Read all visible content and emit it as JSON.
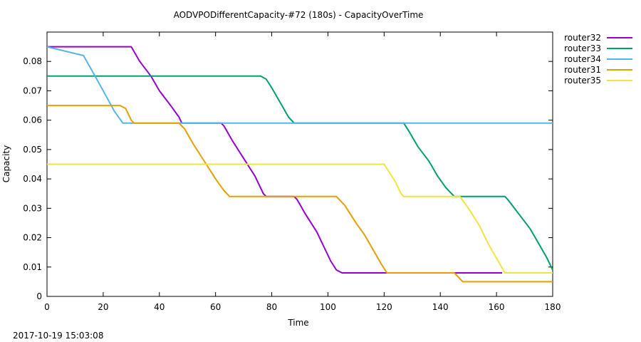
{
  "chart_data": {
    "type": "line",
    "title": "AODVPODifferentCapacity-#72 (180s) - CapacityOverTime",
    "xlabel": "Time",
    "ylabel": "Capacity",
    "xlim": [
      0,
      180
    ],
    "ylim": [
      0,
      0.09
    ],
    "x_ticks": [
      0,
      20,
      40,
      60,
      80,
      100,
      120,
      140,
      160,
      180
    ],
    "y_ticks": [
      0,
      0.01,
      0.02,
      0.03,
      0.04,
      0.05,
      0.06,
      0.07,
      0.08
    ],
    "y_tick_labels": [
      "0",
      "0.01",
      "0.02",
      "0.03",
      "0.04",
      "0.05",
      "0.06",
      "0.07",
      "0.08"
    ],
    "grid": false,
    "legend_position": "outside-right-top",
    "series": [
      {
        "name": "router32",
        "color": "#9400d3",
        "points": [
          [
            0,
            0.085
          ],
          [
            30,
            0.085
          ],
          [
            33,
            0.08
          ],
          [
            37,
            0.075
          ],
          [
            40,
            0.07
          ],
          [
            44,
            0.065
          ],
          [
            47,
            0.061
          ],
          [
            48,
            0.059
          ],
          [
            62,
            0.059
          ],
          [
            63,
            0.058
          ],
          [
            66,
            0.053
          ],
          [
            70,
            0.047
          ],
          [
            74,
            0.041
          ],
          [
            77,
            0.035
          ],
          [
            78,
            0.034
          ],
          [
            88,
            0.034
          ],
          [
            89,
            0.033
          ],
          [
            92,
            0.028
          ],
          [
            96,
            0.022
          ],
          [
            99,
            0.016
          ],
          [
            101,
            0.012
          ],
          [
            103,
            0.009
          ],
          [
            105,
            0.008
          ],
          [
            162,
            0.008
          ]
        ]
      },
      {
        "name": "router33",
        "color": "#009e73",
        "points": [
          [
            0,
            0.075
          ],
          [
            76,
            0.075
          ],
          [
            78,
            0.074
          ],
          [
            80,
            0.071
          ],
          [
            83,
            0.066
          ],
          [
            86,
            0.061
          ],
          [
            88,
            0.059
          ],
          [
            127,
            0.059
          ],
          [
            129,
            0.056
          ],
          [
            132,
            0.051
          ],
          [
            136,
            0.046
          ],
          [
            139,
            0.041
          ],
          [
            142,
            0.037
          ],
          [
            145,
            0.034
          ],
          [
            163,
            0.034
          ],
          [
            164,
            0.033
          ],
          [
            168,
            0.028
          ],
          [
            172,
            0.023
          ],
          [
            175,
            0.018
          ],
          [
            178,
            0.013
          ],
          [
            180,
            0.009
          ]
        ]
      },
      {
        "name": "router34",
        "color": "#56b4e9",
        "points": [
          [
            0,
            0.085
          ],
          [
            13,
            0.082
          ],
          [
            20,
            0.07
          ],
          [
            24,
            0.063
          ],
          [
            27,
            0.059
          ],
          [
            180,
            0.059
          ]
        ]
      },
      {
        "name": "router31",
        "color": "#e69f00",
        "points": [
          [
            0,
            0.065
          ],
          [
            26,
            0.065
          ],
          [
            28,
            0.064
          ],
          [
            30,
            0.06
          ],
          [
            31,
            0.059
          ],
          [
            47,
            0.059
          ],
          [
            49,
            0.057
          ],
          [
            52,
            0.052
          ],
          [
            56,
            0.046
          ],
          [
            60,
            0.04
          ],
          [
            63,
            0.036
          ],
          [
            65,
            0.034
          ],
          [
            103,
            0.034
          ],
          [
            106,
            0.031
          ],
          [
            110,
            0.025
          ],
          [
            113,
            0.021
          ],
          [
            116,
            0.016
          ],
          [
            119,
            0.011
          ],
          [
            121,
            0.008
          ],
          [
            145,
            0.008
          ],
          [
            147,
            0.006
          ],
          [
            148,
            0.005
          ],
          [
            180,
            0.005
          ]
        ]
      },
      {
        "name": "router35",
        "color": "#f0e442",
        "points": [
          [
            0,
            0.045
          ],
          [
            120,
            0.045
          ],
          [
            122,
            0.042
          ],
          [
            124,
            0.039
          ],
          [
            126,
            0.035
          ],
          [
            127,
            0.034
          ],
          [
            147,
            0.034
          ],
          [
            150,
            0.03
          ],
          [
            154,
            0.024
          ],
          [
            157,
            0.018
          ],
          [
            160,
            0.013
          ],
          [
            163,
            0.008
          ],
          [
            180,
            0.008
          ]
        ]
      }
    ]
  },
  "timestamp": "2017-10-19 15:03:08"
}
